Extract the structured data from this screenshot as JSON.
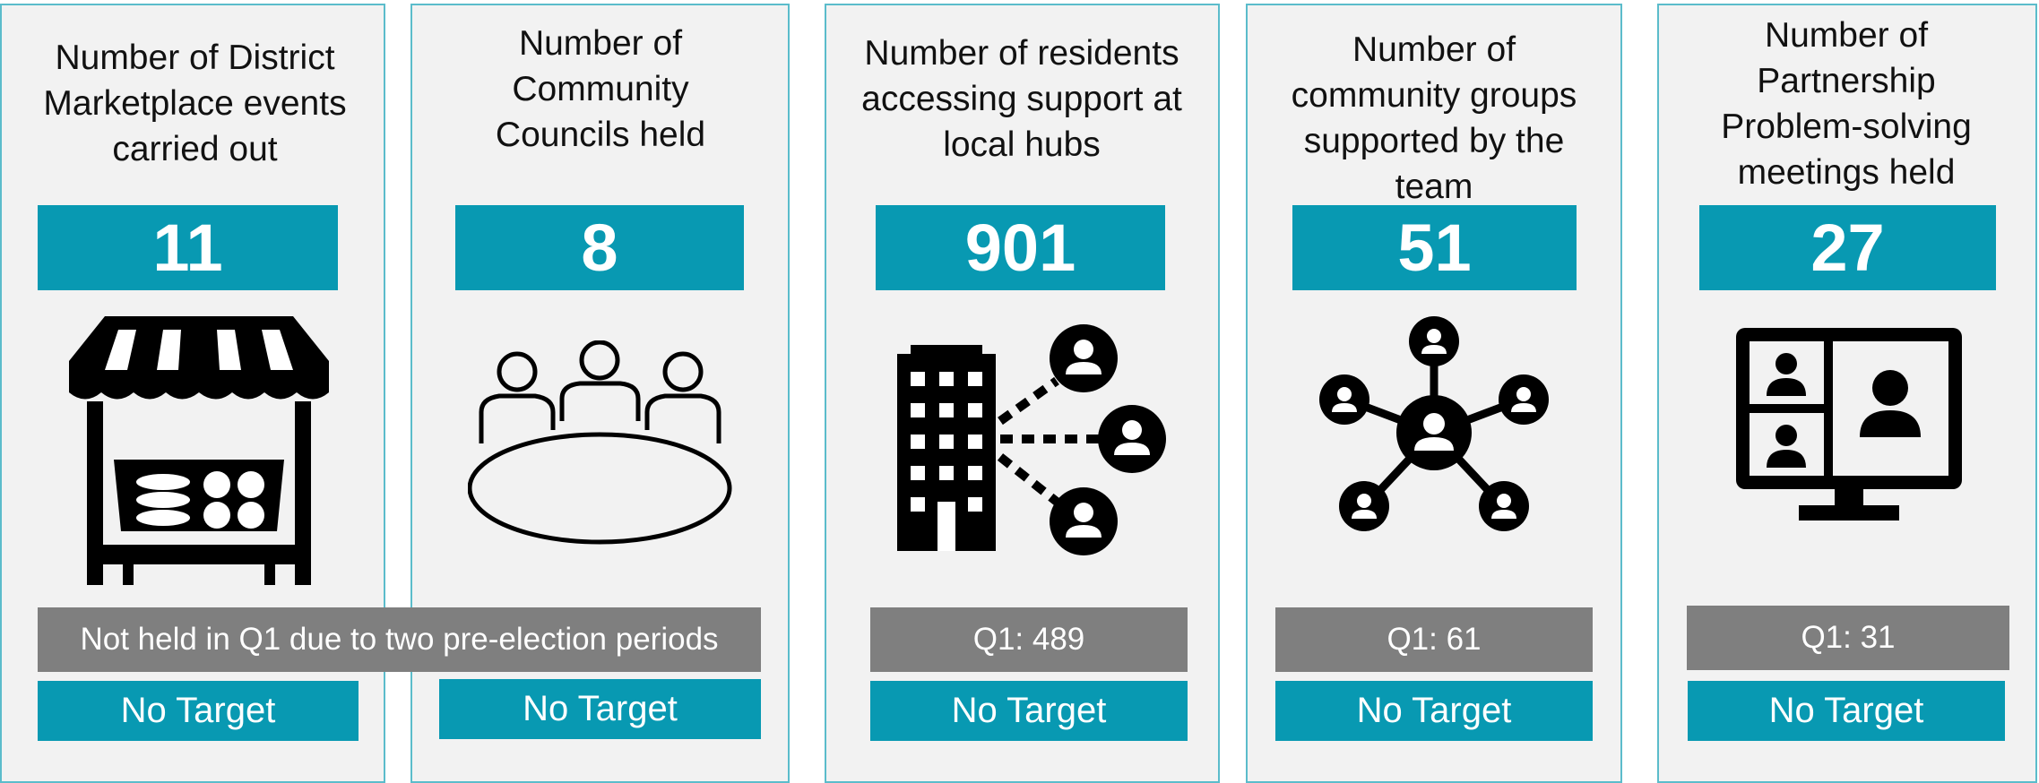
{
  "cards": [
    {
      "title": "Number of District Marketplace events carried out",
      "value": "11",
      "note": "Not held in Q1 due to two pre-election periods",
      "target": "No Target"
    },
    {
      "title": "Number of Community Councils held",
      "value": "8",
      "target": "No Target"
    },
    {
      "title": "Number of residents accessing support at local hubs",
      "value": "901",
      "note": "Q1: 489",
      "target": "No Target"
    },
    {
      "title": "Number of community groups supported by the team",
      "value": "51",
      "note": "Q1: 61",
      "target": "No Target"
    },
    {
      "title": "Number of Partnership Problem-solving meetings held",
      "value": "27",
      "note": "Q1: 31",
      "target": "No Target"
    }
  ]
}
